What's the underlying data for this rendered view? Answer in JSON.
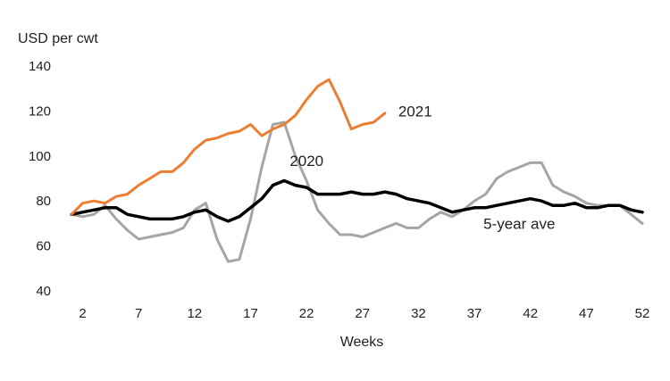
{
  "chart_data": {
    "type": "line",
    "title": "",
    "ylabel": "USD per cwt",
    "xlabel": "Weeks",
    "ylim": [
      40,
      140
    ],
    "xlim": [
      1,
      52
    ],
    "y_ticks": [
      40,
      60,
      80,
      100,
      120,
      140
    ],
    "x_ticks": [
      2,
      7,
      12,
      17,
      22,
      27,
      32,
      37,
      42,
      47,
      52
    ],
    "grid": false,
    "legend": "none",
    "series": [
      {
        "name": "2021",
        "color": "#ED7D31",
        "x": [
          1,
          2,
          3,
          4,
          5,
          6,
          7,
          8,
          9,
          10,
          11,
          12,
          13,
          14,
          15,
          16,
          17,
          18,
          19,
          20,
          21,
          22,
          23,
          24,
          25,
          26,
          27,
          28,
          29
        ],
        "y": [
          74,
          79,
          80,
          79,
          82,
          83,
          87,
          90,
          93,
          93,
          97,
          103,
          107,
          108,
          110,
          111,
          114,
          109,
          112,
          114,
          118,
          125,
          131,
          134,
          124,
          112,
          114,
          115,
          119
        ]
      },
      {
        "name": "2020",
        "color": "#A5A5A5",
        "x": [
          1,
          2,
          3,
          4,
          5,
          6,
          7,
          8,
          9,
          10,
          11,
          12,
          13,
          14,
          15,
          16,
          17,
          18,
          19,
          20,
          21,
          22,
          23,
          24,
          25,
          26,
          27,
          28,
          29,
          30,
          31,
          32,
          33,
          34,
          35,
          36,
          37,
          38,
          39,
          40,
          41,
          42,
          43,
          44,
          45,
          46,
          47,
          48,
          49,
          50,
          51,
          52
        ],
        "y": [
          74,
          73,
          74,
          78,
          72,
          67,
          63,
          64,
          65,
          66,
          68,
          76,
          79,
          63,
          53,
          54,
          72,
          95,
          114,
          115,
          100,
          89,
          76,
          70,
          65,
          65,
          64,
          66,
          68,
          70,
          68,
          68,
          72,
          75,
          73,
          76,
          80,
          83,
          90,
          93,
          95,
          97,
          97,
          87,
          84,
          82,
          79,
          78,
          78,
          78,
          74,
          70
        ]
      },
      {
        "name": "5-year ave",
        "color": "#000000",
        "x": [
          1,
          2,
          3,
          4,
          5,
          6,
          7,
          8,
          9,
          10,
          11,
          12,
          13,
          14,
          15,
          16,
          17,
          18,
          19,
          20,
          21,
          22,
          23,
          24,
          25,
          26,
          27,
          28,
          29,
          30,
          31,
          32,
          33,
          34,
          35,
          36,
          37,
          38,
          39,
          40,
          41,
          42,
          43,
          44,
          45,
          46,
          47,
          48,
          49,
          50,
          51,
          52
        ],
        "y": [
          74,
          75,
          76,
          77,
          77,
          74,
          73,
          72,
          72,
          72,
          73,
          75,
          76,
          73,
          71,
          73,
          77,
          81,
          87,
          89,
          87,
          86,
          83,
          83,
          83,
          84,
          83,
          83,
          84,
          83,
          81,
          80,
          79,
          77,
          75,
          76,
          77,
          77,
          78,
          79,
          80,
          81,
          80,
          78,
          78,
          79,
          77,
          77,
          78,
          78,
          76,
          75
        ]
      }
    ]
  }
}
